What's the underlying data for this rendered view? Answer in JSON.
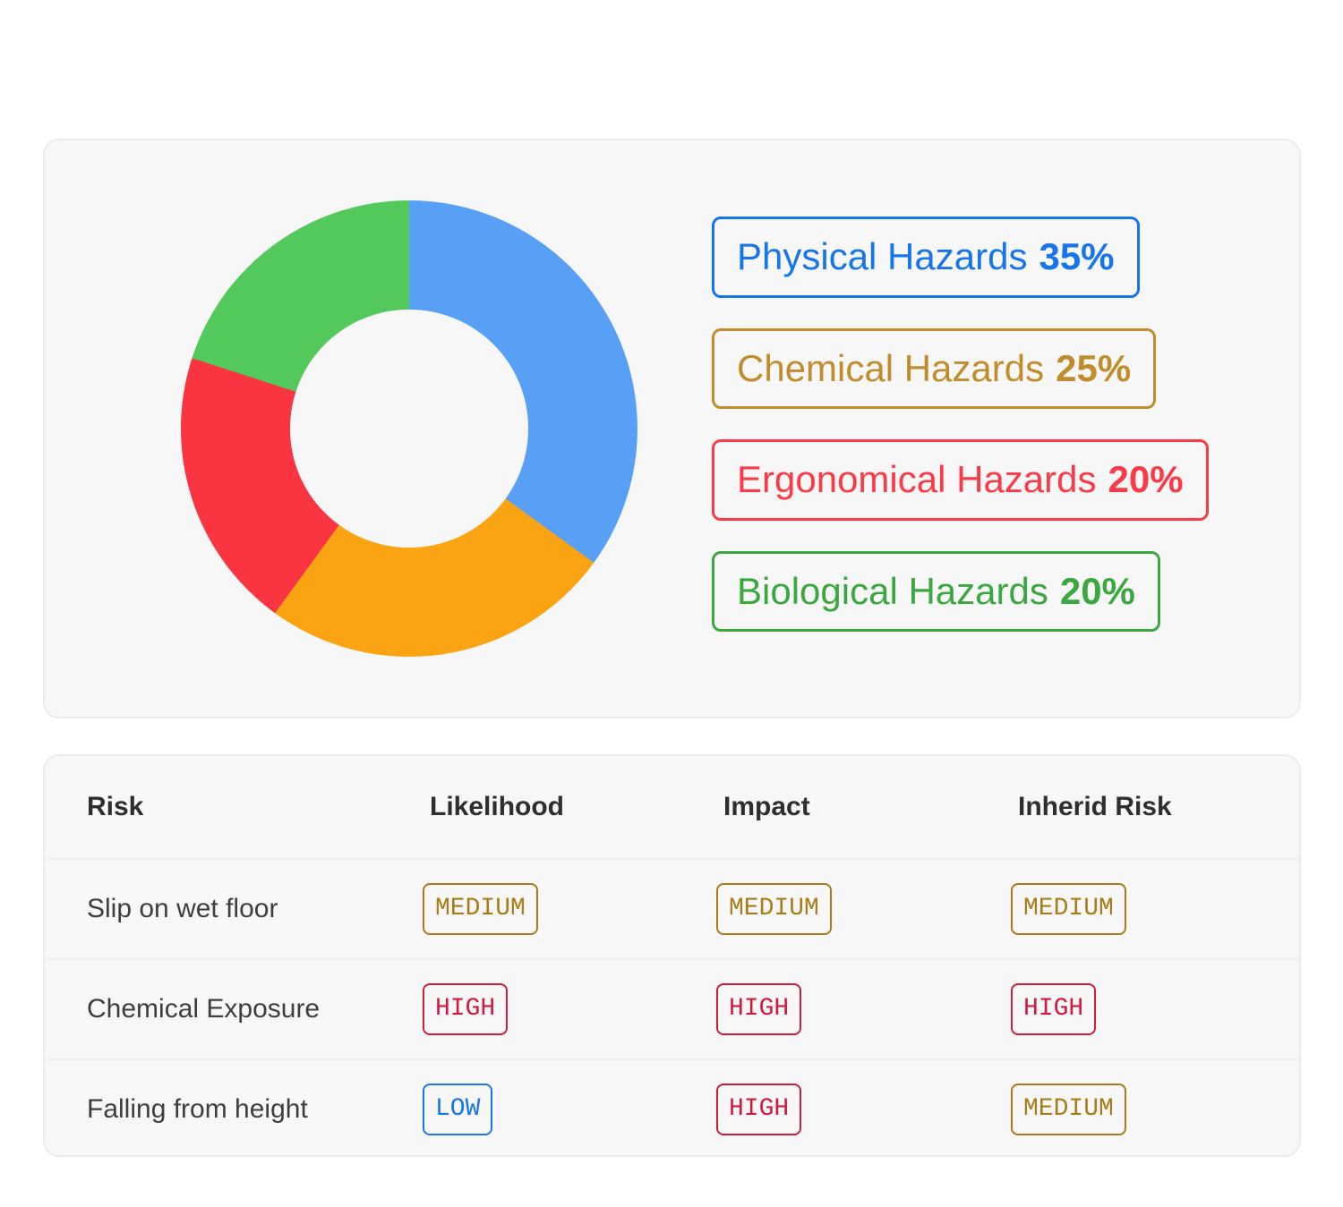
{
  "chart_data": [
    {
      "type": "pie",
      "variant": "donut",
      "categories": [
        "Physical Hazards",
        "Chemical Hazards",
        "Ergonomical Hazards",
        "Biological Hazards"
      ],
      "values": [
        35,
        25,
        20,
        20
      ],
      "slice_colors": [
        "#57a0f6",
        "#faa313",
        "#f93542",
        "#52c95a"
      ],
      "start_angle_deg": 0,
      "direction": "clockwise",
      "hole_ratio": 0.52,
      "legend_position": "right",
      "title": ""
    },
    {
      "type": "table",
      "headers": [
        "Risk",
        "Likelihood",
        "Impact",
        "Inherid Risk"
      ],
      "rows": [
        [
          "Slip on wet floor",
          "MEDIUM",
          "MEDIUM",
          "MEDIUM"
        ],
        [
          "Chemical Exposure",
          "HIGH",
          "HIGH",
          "HIGH"
        ],
        [
          "Falling from height",
          "LOW",
          "HIGH",
          "MEDIUM"
        ]
      ]
    }
  ],
  "hazard_card": {
    "legend": [
      {
        "label": "Physical Hazards",
        "percent": "35%",
        "color": "#1674ec"
      },
      {
        "label": "Chemical Hazards",
        "percent": "25%",
        "color": "#c18c2b"
      },
      {
        "label": "Ergonomical Hazards",
        "percent": "20%",
        "color": "#fa3b47"
      },
      {
        "label": "Biological Hazards",
        "percent": "20%",
        "color": "#3aa83e"
      }
    ]
  },
  "risk_table": {
    "headers": [
      "Risk",
      "Likelihood",
      "Impact",
      "Inherid Risk"
    ],
    "rows": [
      {
        "risk": "Slip on wet floor",
        "likelihood": "MEDIUM",
        "impact": "MEDIUM",
        "inherid_risk": "MEDIUM"
      },
      {
        "risk": "Chemical Exposure",
        "likelihood": "HIGH",
        "impact": "HIGH",
        "inherid_risk": "HIGH"
      },
      {
        "risk": "Falling from height",
        "likelihood": "LOW",
        "impact": "HIGH",
        "inherid_risk": "MEDIUM"
      }
    ],
    "badge_colors": {
      "HIGH": "#d11a3e",
      "MEDIUM": "#a87c19",
      "LOW": "#1676ec"
    }
  }
}
